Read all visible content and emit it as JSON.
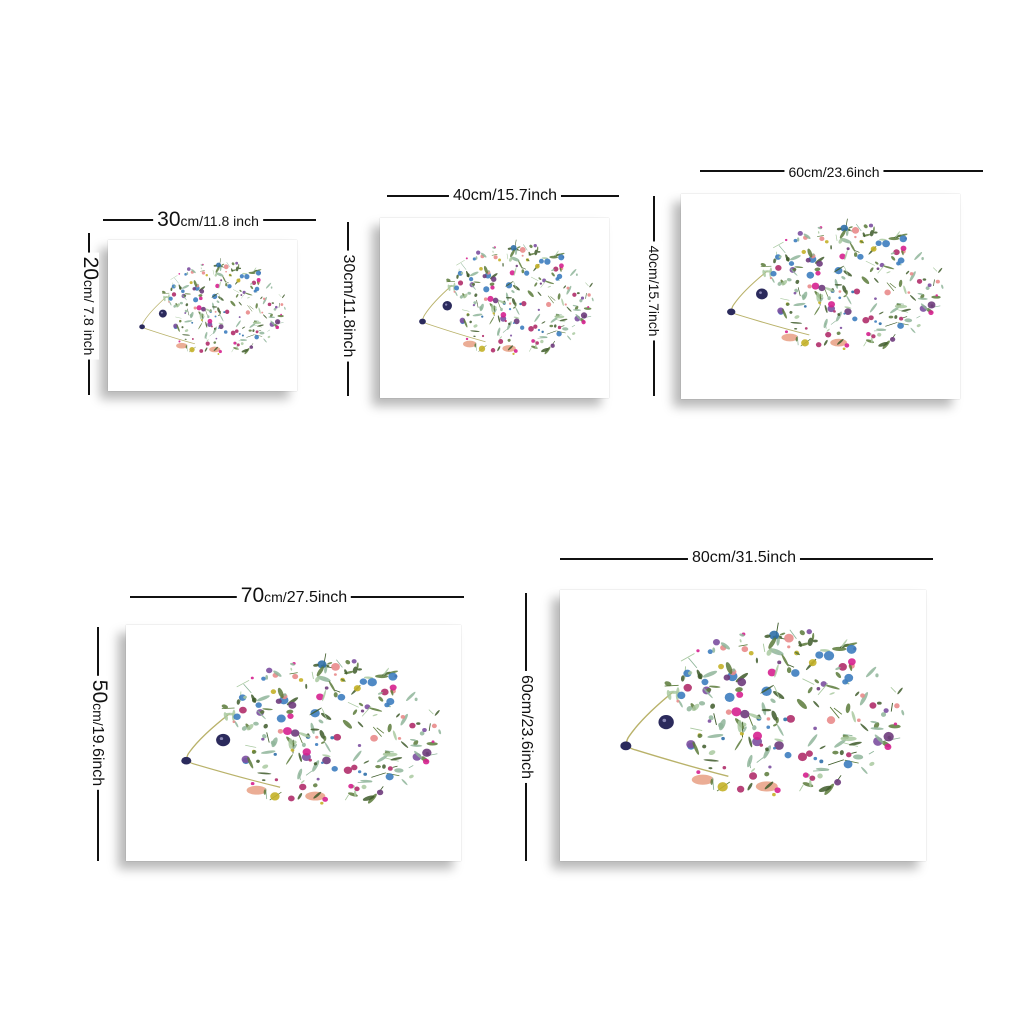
{
  "sizes": [
    {
      "w_num": "30",
      "w_unit": "cm/",
      "w_inch": "11.8",
      "w_suffix": " inch",
      "h_num": "20",
      "h_unit": "cm",
      "h_inch": "/ 7.8",
      "h_suffix": " inch"
    },
    {
      "w_num": "40",
      "w_unit": "cm/",
      "w_inch": "15.7",
      "w_suffix": "inch",
      "h_num": "30",
      "h_unit": "cm/",
      "h_inch": "11.8",
      "h_suffix": "inch"
    },
    {
      "w_num": "60",
      "w_unit": "cm/",
      "w_inch": "23.6",
      "w_suffix": "inch",
      "h_num": "40",
      "h_unit": "cm/",
      "h_inch": "15.7",
      "h_suffix": "inch"
    },
    {
      "w_num": "70",
      "w_unit": "cm/",
      "w_inch": "27.5",
      "w_suffix": "inch",
      "h_num": "50",
      "h_unit": "cm/",
      "h_inch": "19.6",
      "h_suffix": "inch"
    },
    {
      "w_num": "80",
      "w_unit": "cm/",
      "w_inch": "31.5",
      "w_suffix": "inch",
      "h_num": "60",
      "h_unit": "cm/",
      "h_inch": "23.6",
      "h_suffix": "inch"
    }
  ],
  "colors": {
    "flowers": [
      "#d6218f",
      "#2f6fa8",
      "#7c4fa0",
      "#e98b8b",
      "#6e3b7c",
      "#c4b128",
      "#3d7dbf",
      "#b02d6a"
    ],
    "leaves": [
      "#5a7a3a",
      "#8fb59a",
      "#3e5b2a",
      "#a9c9a0"
    ],
    "outline": "#b9b26a",
    "eye": "#2b2a5c",
    "feet": "#e9a48a"
  }
}
